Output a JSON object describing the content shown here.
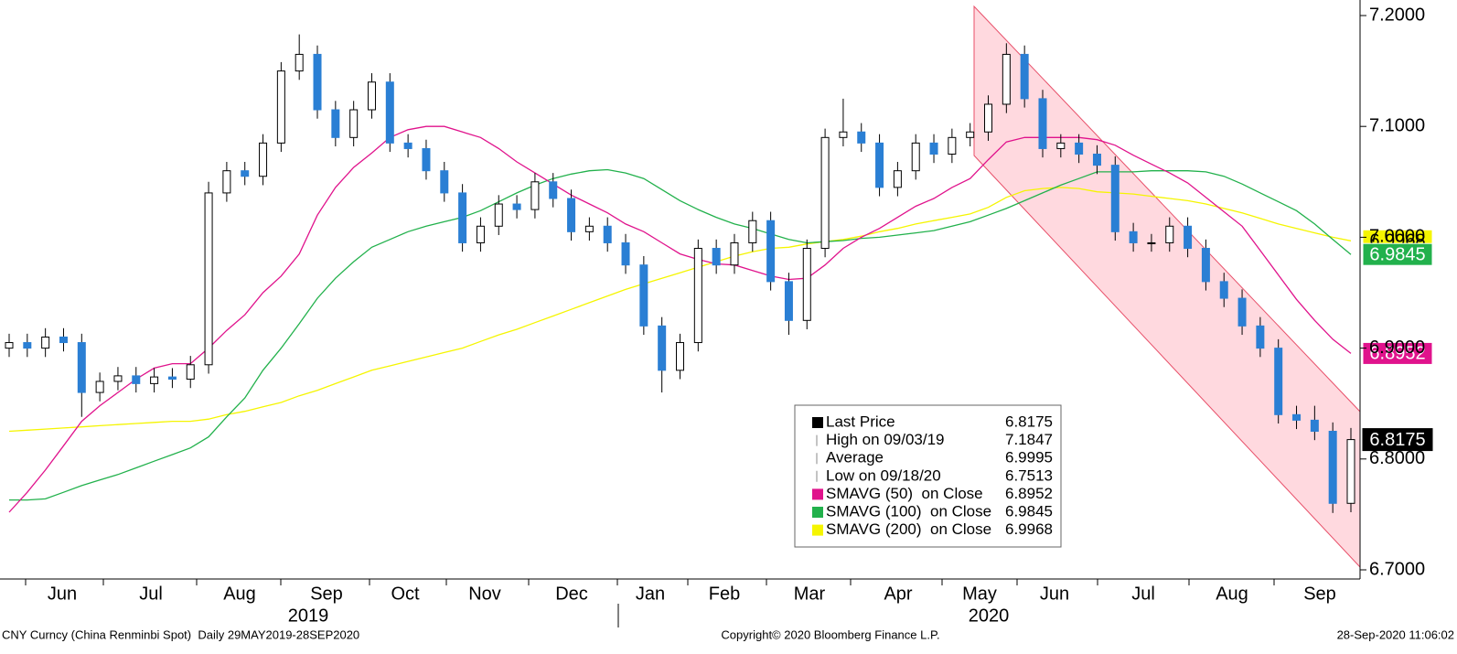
{
  "chart_data": {
    "type": "candlestick",
    "ylim": [
      6.7,
      7.2
    ],
    "yticks": [
      {
        "value": 6.7,
        "label": "6.7000"
      },
      {
        "value": 6.8,
        "label": "6.8000"
      },
      {
        "value": 6.9,
        "label": "6.9000"
      },
      {
        "value": 7.0,
        "label": "7.0000"
      },
      {
        "value": 7.1,
        "label": "7.1000"
      },
      {
        "value": 7.2,
        "label": "7.2000"
      }
    ],
    "months": [
      "Jun",
      "Jul",
      "Aug",
      "Sep",
      "Oct",
      "Nov",
      "Dec",
      "Jan",
      "Feb",
      "Mar",
      "Apr",
      "May",
      "Jun",
      "Jul",
      "Aug",
      "Sep"
    ],
    "years": [
      "2019",
      "2020"
    ],
    "up_color": "#ffffff",
    "down_color": "#2a7fd4",
    "candles": {
      "name": "Last Price",
      "open": [
        6.9,
        6.905,
        6.9,
        6.91,
        6.905,
        6.86,
        6.87,
        6.875,
        6.868,
        6.874,
        6.872,
        6.885,
        7.04,
        7.06,
        7.055,
        7.085,
        7.15,
        7.165,
        7.115,
        7.09,
        7.115,
        7.14,
        7.085,
        7.08,
        7.06,
        7.04,
        6.995,
        7.01,
        7.03,
        7.025,
        7.05,
        7.035,
        7.005,
        7.01,
        6.995,
        6.975,
        6.92,
        6.88,
        6.905,
        6.99,
        6.975,
        6.995,
        7.015,
        6.96,
        6.925,
        6.99,
        7.09,
        7.095,
        7.085,
        7.045,
        7.06,
        7.085,
        7.075,
        7.09,
        7.095,
        7.12,
        7.165,
        7.125,
        7.08,
        7.085,
        7.075,
        7.065,
        7.005,
        6.995,
        6.995,
        7.01,
        6.99,
        6.96,
        6.945,
        6.92,
        6.9,
        6.84,
        6.835,
        6.825,
        6.76
      ],
      "high": [
        6.913,
        6.913,
        6.918,
        6.918,
        6.913,
        6.878,
        6.883,
        6.883,
        6.882,
        6.882,
        6.893,
        7.05,
        7.068,
        7.068,
        7.093,
        7.158,
        7.183,
        7.173,
        7.123,
        7.123,
        7.148,
        7.148,
        7.093,
        7.088,
        7.068,
        7.048,
        7.018,
        7.038,
        7.038,
        7.058,
        7.058,
        7.043,
        7.018,
        7.018,
        7.003,
        6.983,
        6.928,
        6.913,
        6.998,
        6.998,
        7.003,
        7.023,
        7.023,
        6.968,
        6.998,
        7.098,
        7.125,
        7.103,
        7.093,
        7.068,
        7.093,
        7.093,
        7.098,
        7.103,
        7.128,
        7.175,
        7.173,
        7.133,
        7.093,
        7.093,
        7.083,
        7.073,
        7.013,
        7.003,
        7.018,
        7.018,
        6.998,
        6.968,
        6.953,
        6.928,
        6.908,
        6.848,
        6.848,
        6.833,
        6.828
      ],
      "low": [
        6.892,
        6.892,
        6.892,
        6.897,
        6.838,
        6.852,
        6.862,
        6.86,
        6.86,
        6.864,
        6.864,
        6.877,
        7.032,
        7.047,
        7.047,
        7.077,
        7.142,
        7.107,
        7.082,
        7.082,
        7.107,
        7.077,
        7.072,
        7.052,
        7.032,
        6.987,
        6.987,
        7.002,
        7.017,
        7.017,
        7.027,
        6.997,
        6.997,
        6.987,
        6.967,
        6.912,
        6.86,
        6.872,
        6.897,
        6.967,
        6.967,
        6.987,
        6.952,
        6.912,
        6.917,
        6.982,
        7.082,
        7.077,
        7.037,
        7.037,
        7.052,
        7.067,
        7.067,
        7.082,
        7.087,
        7.112,
        7.117,
        7.072,
        7.072,
        7.067,
        7.057,
        6.997,
        6.987,
        6.987,
        6.987,
        6.982,
        6.952,
        6.937,
        6.912,
        6.892,
        6.832,
        6.827,
        6.817,
        6.7513,
        6.752
      ],
      "close": [
        6.905,
        6.9,
        6.91,
        6.905,
        6.86,
        6.87,
        6.875,
        6.868,
        6.874,
        6.872,
        6.885,
        7.04,
        7.06,
        7.055,
        7.085,
        7.15,
        7.165,
        7.115,
        7.09,
        7.115,
        7.14,
        7.085,
        7.08,
        7.06,
        7.04,
        6.995,
        7.01,
        7.03,
        7.025,
        7.05,
        7.035,
        7.005,
        7.01,
        6.995,
        6.975,
        6.92,
        6.88,
        6.905,
        6.99,
        6.975,
        6.995,
        7.015,
        6.96,
        6.925,
        6.99,
        7.09,
        7.095,
        7.085,
        7.045,
        7.06,
        7.085,
        7.075,
        7.09,
        7.095,
        7.12,
        7.165,
        7.125,
        7.08,
        7.085,
        7.075,
        7.065,
        7.005,
        6.995,
        6.995,
        7.01,
        6.99,
        6.96,
        6.945,
        6.92,
        6.9,
        6.84,
        6.835,
        6.825,
        6.76,
        6.8175
      ]
    },
    "series": [
      {
        "name": "SMAVG (50)  on Close",
        "color": "#e0138c",
        "values": [
          6.752,
          6.77,
          6.79,
          6.812,
          6.834,
          6.848,
          6.86,
          6.872,
          6.882,
          6.886,
          6.886,
          6.9,
          6.916,
          6.93,
          6.95,
          6.965,
          6.985,
          7.02,
          7.045,
          7.063,
          7.076,
          7.09,
          7.097,
          7.1,
          7.1,
          7.095,
          7.09,
          7.08,
          7.068,
          7.058,
          7.048,
          7.038,
          7.03,
          7.022,
          7.012,
          7.005,
          6.995,
          6.985,
          6.98,
          6.976,
          6.975,
          6.97,
          6.965,
          6.962,
          6.963,
          6.975,
          6.99,
          7.0,
          7.008,
          7.018,
          7.028,
          7.035,
          7.045,
          7.053,
          7.07,
          7.086,
          7.09,
          7.09,
          7.09,
          7.09,
          7.088,
          7.083,
          7.074,
          7.066,
          7.058,
          7.049,
          7.036,
          7.023,
          7.01,
          6.988,
          6.966,
          6.944,
          6.925,
          6.908,
          6.8952
        ]
      },
      {
        "name": "SMAVG (100)  on Close",
        "color": "#22b14c",
        "values": [
          6.763,
          6.763,
          6.764,
          6.77,
          6.776,
          6.781,
          6.786,
          6.792,
          6.798,
          6.804,
          6.81,
          6.82,
          6.838,
          6.855,
          6.88,
          6.9,
          6.922,
          6.945,
          6.963,
          6.978,
          6.991,
          6.998,
          7.005,
          7.01,
          7.014,
          7.018,
          7.024,
          7.032,
          7.04,
          7.047,
          7.053,
          7.057,
          7.06,
          7.061,
          7.058,
          7.053,
          7.043,
          7.033,
          7.025,
          7.018,
          7.012,
          7.008,
          7.003,
          6.998,
          6.995,
          6.996,
          6.997,
          6.999,
          7.0,
          7.002,
          7.004,
          7.006,
          7.01,
          7.014,
          7.02,
          7.026,
          7.033,
          7.04,
          7.047,
          7.053,
          7.059,
          7.059,
          7.059,
          7.06,
          7.06,
          7.06,
          7.059,
          7.055,
          7.048,
          7.04,
          7.032,
          7.024,
          7.012,
          6.998,
          6.9845
        ]
      },
      {
        "name": "SMAVG (200)  on Close",
        "color": "#f5f500",
        "values": [
          6.825,
          6.826,
          6.827,
          6.828,
          6.829,
          6.83,
          6.831,
          6.832,
          6.833,
          6.834,
          6.834,
          6.836,
          6.84,
          6.843,
          6.847,
          6.851,
          6.857,
          6.862,
          6.868,
          6.874,
          6.88,
          6.884,
          6.888,
          6.892,
          6.896,
          6.9,
          6.906,
          6.912,
          6.917,
          6.923,
          6.929,
          6.935,
          6.941,
          6.947,
          6.953,
          6.958,
          6.963,
          6.968,
          6.973,
          6.978,
          6.983,
          6.987,
          6.99,
          6.991,
          6.994,
          6.996,
          6.998,
          7.001,
          7.005,
          7.008,
          7.012,
          7.015,
          7.018,
          7.021,
          7.027,
          7.036,
          7.042,
          7.044,
          7.045,
          7.044,
          7.041,
          7.04,
          7.039,
          7.037,
          7.035,
          7.033,
          7.03,
          7.026,
          7.022,
          7.017,
          7.012,
          7.008,
          7.004,
          7.0,
          6.9968
        ]
      }
    ],
    "legend_stats": [
      {
        "label": "High on 09/03/19",
        "value": 7.1847
      },
      {
        "label": "Average",
        "value": 6.9995
      },
      {
        "label": "Low on 09/18/20",
        "value": 6.7513
      }
    ],
    "footer_left": "CNY Curncy (China Renminbi Spot)  Daily 29MAY2019-28SEP2020",
    "footer_center": "Copyright© 2020 Bloomberg Finance L.P.",
    "footer_right": "28-Sep-2020 11:06:02"
  }
}
